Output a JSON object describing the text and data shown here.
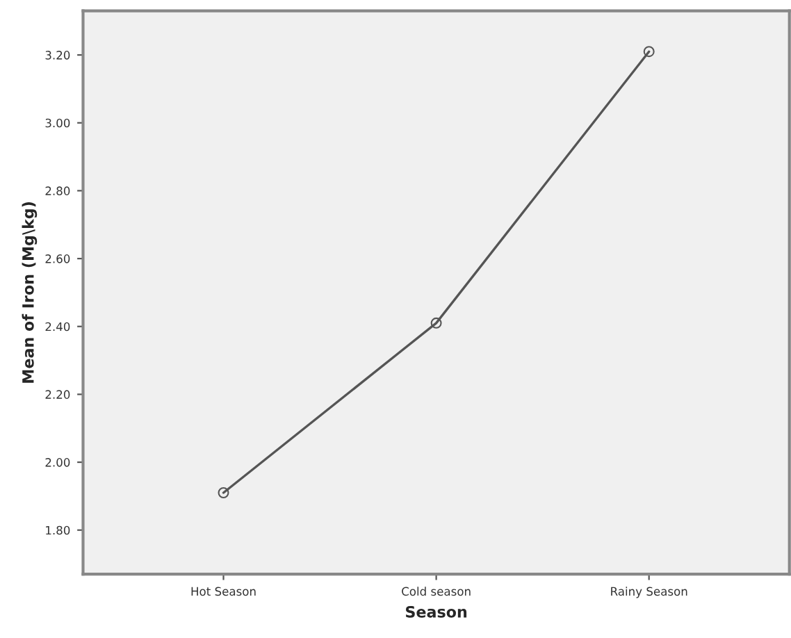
{
  "chart_data": {
    "type": "line",
    "xlabel": "Season",
    "ylabel": "Mean of Iron (Mg\\kg)",
    "categories": [
      "Hot Season",
      "Cold season",
      "Rainy Season"
    ],
    "series": [
      {
        "color": "#555555",
        "values": [
          1.91,
          2.41,
          3.21
        ]
      }
    ],
    "marker": "circle",
    "line_style": "solid",
    "grid": false,
    "legend": false,
    "ylim": [
      1.67,
      3.33
    ],
    "yticks": [
      {
        "value": 1.8,
        "label": "1.80"
      },
      {
        "value": 2.0,
        "label": "2.00"
      },
      {
        "value": 2.2,
        "label": "2.20"
      },
      {
        "value": 2.4,
        "label": "2.40"
      },
      {
        "value": 2.6,
        "label": "2.60"
      },
      {
        "value": 2.8,
        "label": "2.80"
      },
      {
        "value": 3.0,
        "label": "3.00"
      },
      {
        "value": 3.2,
        "label": "3.20"
      }
    ]
  }
}
